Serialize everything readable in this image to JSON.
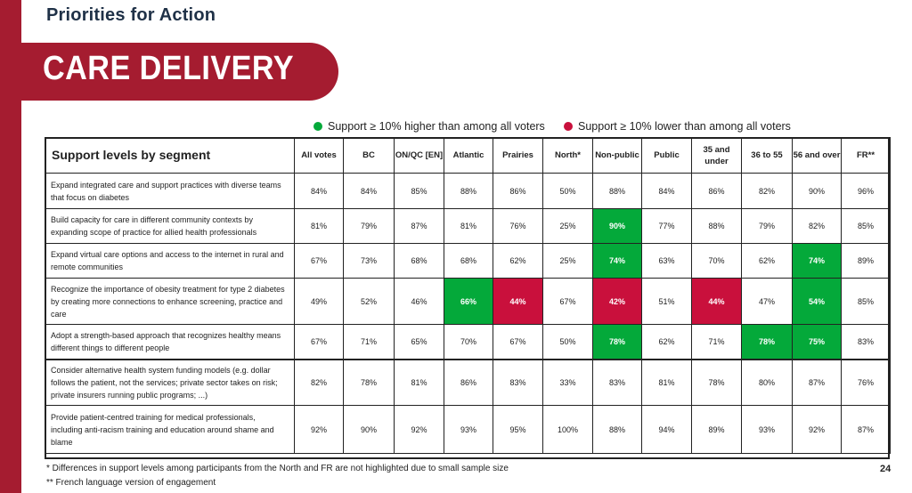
{
  "header": {
    "section": "Priorities for Action",
    "banner": "CARE DELIVERY"
  },
  "legend": {
    "higher": "Support ≥ 10% higher than among all voters",
    "lower": "Support ≥ 10% lower than among all voters",
    "higher_color": "#04a93a",
    "lower_color": "#c9103c"
  },
  "table": {
    "title": "Support levels by segment",
    "columns": [
      "All votes",
      "BC",
      "ON/QC [EN]",
      "Atlantic",
      "Prairies",
      "North*",
      "Non-public",
      "Public",
      "35 and under",
      "36 to 55",
      "56 and over",
      "FR**"
    ],
    "rows": [
      {
        "label": "Expand integrated care and support practices with diverse teams that focus on diabetes",
        "values": [
          "84%",
          "84%",
          "85%",
          "88%",
          "86%",
          "50%",
          "88%",
          "84%",
          "86%",
          "82%",
          "90%",
          "96%"
        ],
        "flags": [
          "",
          "",
          "",
          "",
          "",
          "",
          "",
          "",
          "",
          "",
          "",
          ""
        ]
      },
      {
        "label": "Build capacity for care in different community contexts by expanding scope of practice for allied health professionals",
        "values": [
          "81%",
          "79%",
          "87%",
          "81%",
          "76%",
          "25%",
          "90%",
          "77%",
          "88%",
          "79%",
          "82%",
          "85%"
        ],
        "flags": [
          "",
          "",
          "",
          "",
          "",
          "",
          "hi",
          "",
          "",
          "",
          "",
          ""
        ]
      },
      {
        "label": "Expand virtual care options and access to the internet in rural and remote communities",
        "values": [
          "67%",
          "73%",
          "68%",
          "68%",
          "62%",
          "25%",
          "74%",
          "63%",
          "70%",
          "62%",
          "74%",
          "89%"
        ],
        "flags": [
          "",
          "",
          "",
          "",
          "",
          "",
          "hi",
          "",
          "",
          "",
          "hi",
          ""
        ]
      },
      {
        "label": "Recognize the importance of obesity treatment for type 2 diabetes by creating more connections to enhance screening, practice and care",
        "values": [
          "49%",
          "52%",
          "46%",
          "66%",
          "44%",
          "67%",
          "42%",
          "51%",
          "44%",
          "47%",
          "54%",
          "85%"
        ],
        "flags": [
          "",
          "",
          "",
          "hi",
          "lo",
          "",
          "lo",
          "",
          "lo",
          "",
          "hi",
          ""
        ]
      },
      {
        "label": "Adopt a strength-based approach that recognizes healthy means different things to different people",
        "values": [
          "67%",
          "71%",
          "65%",
          "70%",
          "67%",
          "50%",
          "78%",
          "62%",
          "71%",
          "78%",
          "75%",
          "83%"
        ],
        "flags": [
          "",
          "",
          "",
          "",
          "",
          "",
          "hi",
          "",
          "",
          "hi",
          "hi",
          ""
        ]
      },
      {
        "label": "Consider alternative health system funding models (e.g. dollar follows the patient, not the services; private sector takes on risk; private insurers running public programs; ...)",
        "values": [
          "82%",
          "78%",
          "81%",
          "86%",
          "83%",
          "33%",
          "83%",
          "81%",
          "78%",
          "80%",
          "87%",
          "76%"
        ],
        "flags": [
          "",
          "",
          "",
          "",
          "",
          "",
          "",
          "",
          "",
          "",
          "",
          ""
        ]
      },
      {
        "label": "Provide patient-centred training for medical professionals, including anti-racism training and education around shame and blame",
        "values": [
          "92%",
          "90%",
          "92%",
          "93%",
          "95%",
          "100%",
          "88%",
          "94%",
          "89%",
          "93%",
          "92%",
          "87%"
        ],
        "flags": [
          "",
          "",
          "",
          "",
          "",
          "",
          "",
          "",
          "",
          "",
          "",
          ""
        ]
      }
    ]
  },
  "footnotes": [
    "* Differences in support levels among participants from the North and FR are not highlighted due to small sample size",
    "** French language version of engagement"
  ],
  "page_number": "24"
}
